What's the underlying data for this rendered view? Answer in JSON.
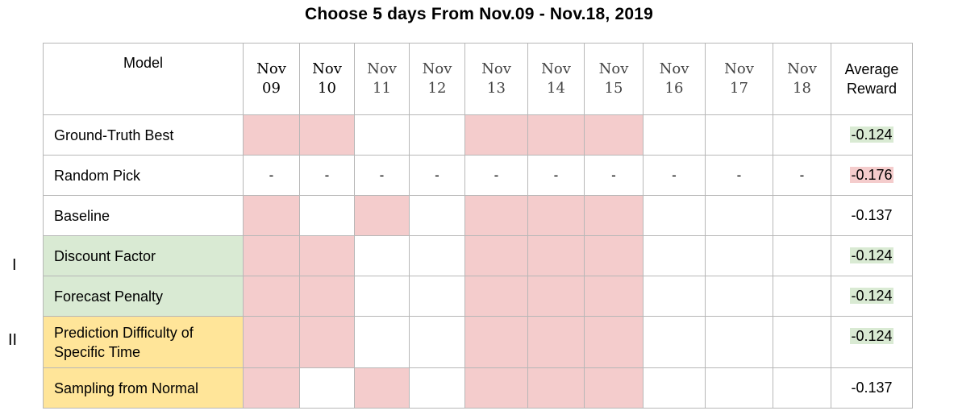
{
  "title": "Choose 5 days From Nov.09  - Nov.18, 2019",
  "groups": {
    "I": "I",
    "II": "II"
  },
  "header": {
    "model": "Model",
    "days": [
      {
        "month": "Nov",
        "day": "09",
        "dim": false
      },
      {
        "month": "Nov",
        "day": "10",
        "dim": false
      },
      {
        "month": "Nov",
        "day": "11",
        "dim": true
      },
      {
        "month": "Nov",
        "day": "12",
        "dim": true
      },
      {
        "month": "Nov",
        "day": "13",
        "dim": true
      },
      {
        "month": "Nov",
        "day": "14",
        "dim": true
      },
      {
        "month": "Nov",
        "day": "15",
        "dim": true
      },
      {
        "month": "Nov",
        "day": "16",
        "dim": true
      },
      {
        "month": "Nov",
        "day": "17",
        "dim": true
      },
      {
        "month": "Nov",
        "day": "18",
        "dim": true
      }
    ],
    "avg_line1": "Average",
    "avg_line2": "Reward"
  },
  "rows": [
    {
      "model": "Ground-Truth Best",
      "tint": "none",
      "selected": [
        1,
        1,
        0,
        0,
        1,
        1,
        1,
        0,
        0,
        0
      ],
      "dashes": false,
      "avg": "-0.124",
      "avg_hl": "green"
    },
    {
      "model": "Random Pick",
      "tint": "none",
      "selected": [
        0,
        0,
        0,
        0,
        0,
        0,
        0,
        0,
        0,
        0
      ],
      "dashes": true,
      "dash": "-",
      "avg": "-0.176",
      "avg_hl": "red"
    },
    {
      "model": "Baseline",
      "tint": "none",
      "selected": [
        1,
        0,
        1,
        0,
        1,
        1,
        1,
        0,
        0,
        0
      ],
      "dashes": false,
      "avg": "-0.137",
      "avg_hl": "none"
    },
    {
      "model": "Discount Factor",
      "tint": "green",
      "selected": [
        1,
        1,
        0,
        0,
        1,
        1,
        1,
        0,
        0,
        0
      ],
      "dashes": false,
      "avg": "-0.124",
      "avg_hl": "green"
    },
    {
      "model": "Forecast Penalty",
      "tint": "green",
      "selected": [
        1,
        1,
        0,
        0,
        1,
        1,
        1,
        0,
        0,
        0
      ],
      "dashes": false,
      "avg": "-0.124",
      "avg_hl": "green"
    },
    {
      "model_line1": "Prediction Difficulty of",
      "model_line2": "Specific Time",
      "model": "Prediction Difficulty of Specific Time",
      "tint": "yellow",
      "selected": [
        1,
        1,
        0,
        0,
        1,
        1,
        1,
        0,
        0,
        0
      ],
      "dashes": false,
      "avg": "-0.124",
      "avg_hl": "green",
      "tall": true
    },
    {
      "model": "Sampling from Normal",
      "tint": "yellow",
      "selected": [
        1,
        0,
        1,
        0,
        1,
        1,
        1,
        0,
        0,
        0
      ],
      "dashes": false,
      "avg": "-0.137",
      "avg_hl": "none"
    }
  ],
  "colors": {
    "selected": "#f4cccc",
    "group_I": "#d9ead3",
    "group_II": "#ffe599",
    "best_highlight": "#d9ead3",
    "worst_highlight": "#f4cccc",
    "grid_line": "#b7b7b7"
  }
}
